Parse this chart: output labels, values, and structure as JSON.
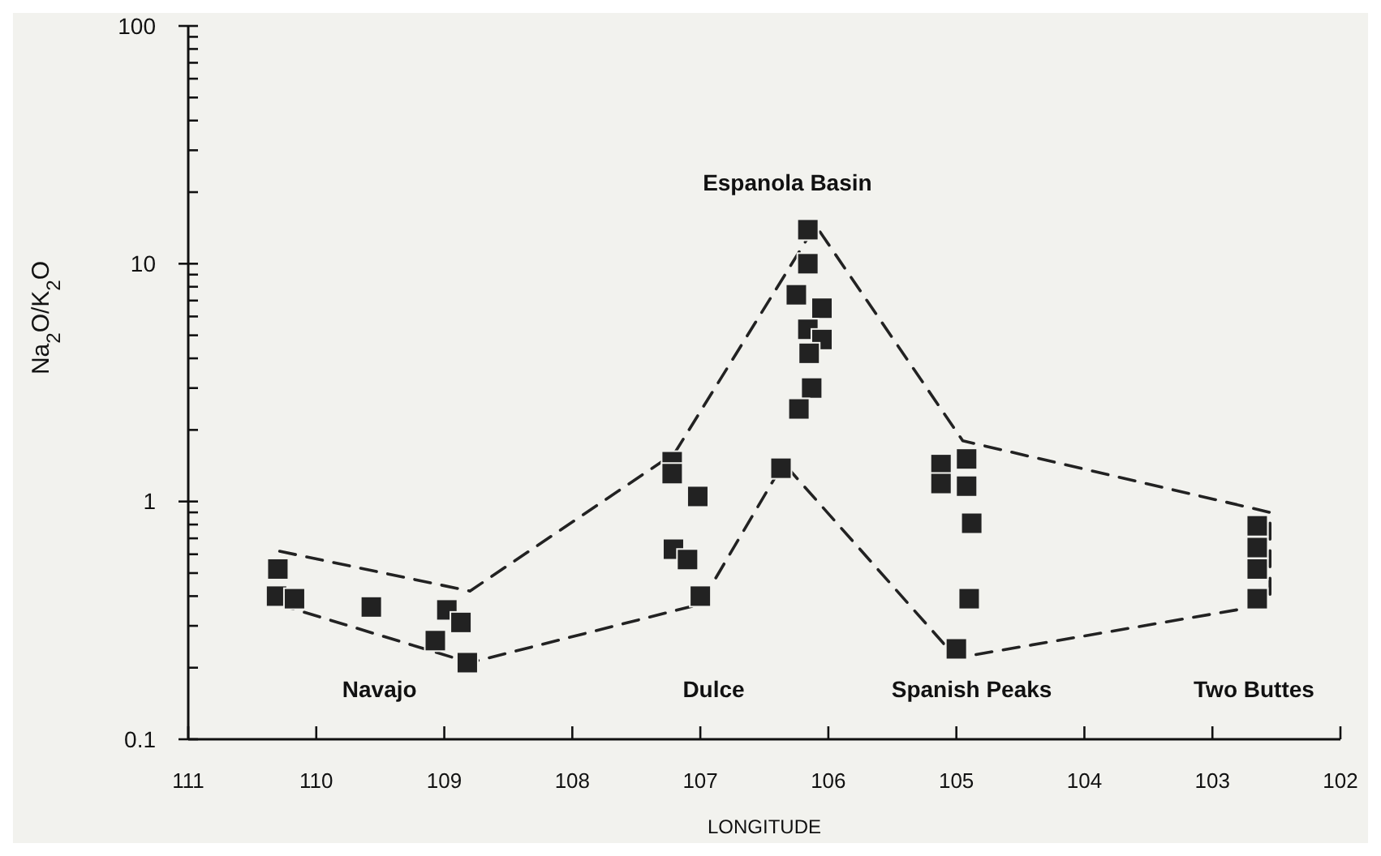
{
  "chart_data": {
    "type": "scatter",
    "xlabel": "LONGITUDE",
    "ylabel": "Na$_{2}$O/K$_{2}$O",
    "log": "y",
    "grid": false,
    "xlim": [
      111,
      102
    ],
    "xticks": [
      111,
      110,
      109,
      108,
      107,
      106,
      105,
      104,
      103,
      102
    ],
    "ylim": [
      0.1,
      100
    ],
    "yticks": [
      0.1,
      {
        "value": 0.2,
        "label": null
      },
      {
        "value": 0.3,
        "label": null
      },
      {
        "value": 0.4,
        "label": null
      },
      {
        "value": 0.5,
        "label": null
      },
      {
        "value": 0.6,
        "label": null
      },
      {
        "value": 0.7,
        "label": null
      },
      {
        "value": 0.8,
        "label": null
      },
      {
        "value": 0.9,
        "label": null
      },
      1,
      {
        "value": 2,
        "label": null
      },
      {
        "value": 3,
        "label": null
      },
      {
        "value": 4,
        "label": null
      },
      {
        "value": 5,
        "label": null
      },
      {
        "value": 6,
        "label": null
      },
      {
        "value": 7,
        "label": null
      },
      {
        "value": 8,
        "label": null
      },
      {
        "value": 9,
        "label": null
      },
      10,
      {
        "value": 20,
        "label": null
      },
      {
        "value": 30,
        "label": null
      },
      {
        "value": 40,
        "label": null
      },
      {
        "value": 50,
        "label": null
      },
      {
        "value": 60,
        "label": null
      },
      {
        "value": 70,
        "label": null
      },
      {
        "value": 80,
        "label": null
      },
      {
        "value": 90,
        "label": null
      },
      100
    ],
    "series": [
      {
        "marker": "square",
        "color": "#222222",
        "x": [
          110.3,
          110.31,
          110.17,
          109.57,
          108.98,
          108.87,
          109.07,
          108.82,
          106.16,
          106.16,
          106.25,
          106.05,
          106.16,
          106.05,
          106.15,
          106.13,
          106.23,
          106.37,
          107.22,
          107.22,
          107.02,
          107.21,
          107.1,
          107.0,
          105.12,
          105.12,
          104.92,
          104.92,
          104.88,
          104.9,
          105.0,
          102.65,
          102.65,
          102.65,
          102.65
        ],
        "values": [
          0.52,
          0.4,
          0.39,
          0.36,
          0.35,
          0.31,
          0.26,
          0.21,
          13.9,
          10.0,
          7.4,
          6.5,
          5.3,
          4.8,
          4.2,
          3.0,
          2.45,
          1.38,
          1.47,
          1.31,
          1.05,
          0.63,
          0.57,
          0.4,
          1.43,
          1.19,
          1.51,
          1.16,
          0.81,
          0.39,
          0.24,
          0.79,
          0.64,
          0.52,
          0.39
        ]
      },
      {
        "type": "line",
        "line_style": "dashed",
        "color": "#222222",
        "x": [
          110.3,
          110.3,
          108.8,
          107.2,
          106.1,
          104.95,
          102.55,
          102.55
        ],
        "values": [
          0.37,
          0.62,
          0.42,
          1.6,
          14.5,
          1.8,
          0.9,
          0.37
        ]
      },
      {
        "type": "line",
        "line_style": "dashed",
        "color": "#222222",
        "x": [
          110.3,
          108.8,
          107.0,
          106.35,
          105.0,
          102.55
        ],
        "values": [
          0.37,
          0.21,
          0.37,
          1.45,
          0.22,
          0.37
        ]
      }
    ],
    "annotations": [
      "Navajo",
      "Dulce",
      "Spanish Peaks",
      "Two Buttes",
      "Espanola Basin"
    ]
  }
}
